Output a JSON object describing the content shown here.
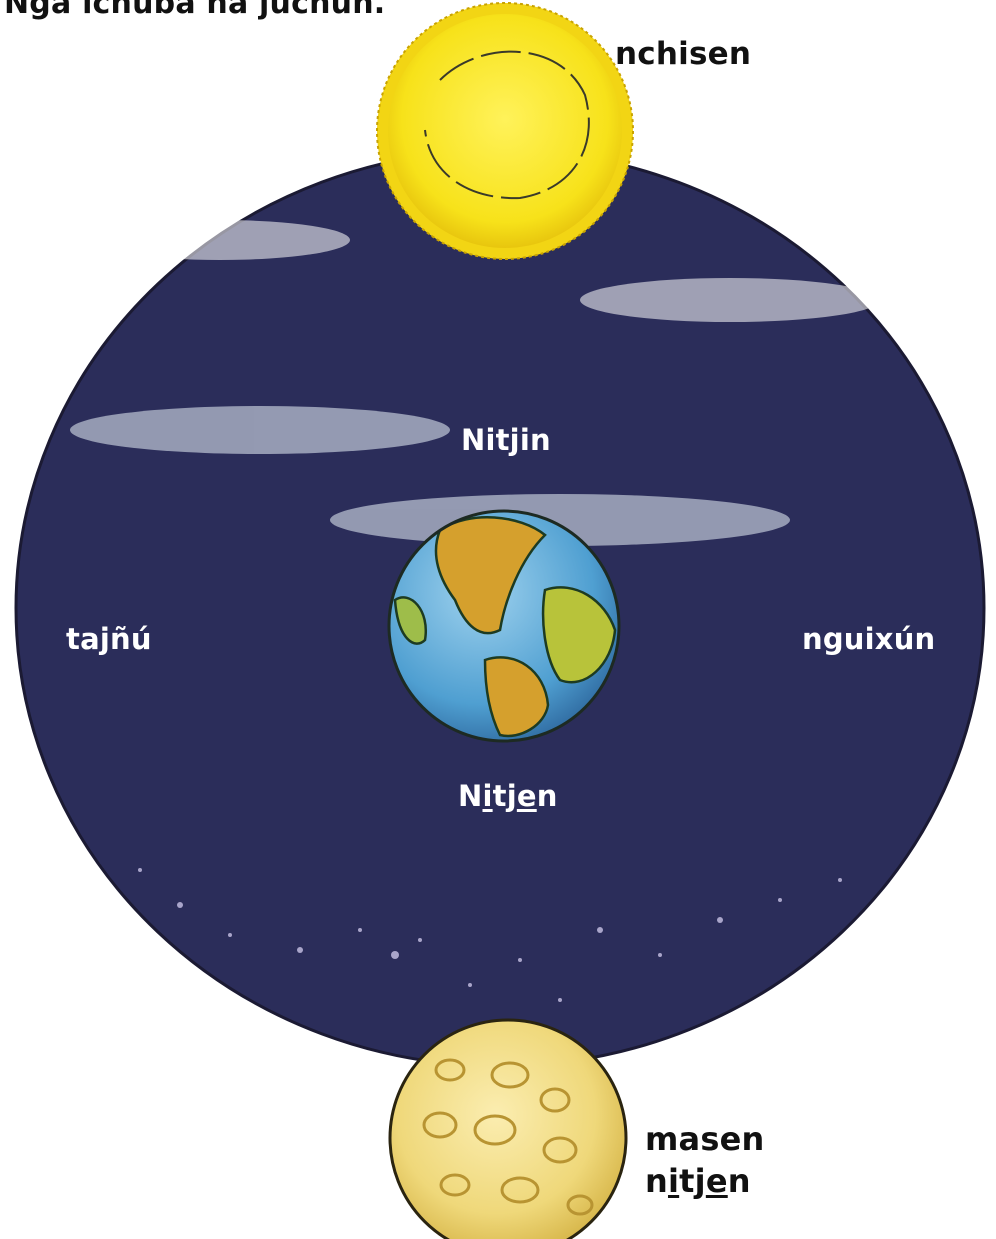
{
  "title": "Ngà ichubà na juchun.",
  "labels": {
    "sun": "nchisen",
    "day": "Nitjin",
    "west": "tajñú",
    "east": "nguixún",
    "night": {
      "p1": "N",
      "p2": "i",
      "p3": "tj",
      "p4": "e",
      "p5": "n"
    },
    "moon": {
      "line1": "masen",
      "line2": {
        "p1": "n",
        "p2": "i",
        "p3": "tj",
        "p4": "e",
        "p5": "n"
      }
    }
  },
  "colors": {
    "sky_day": "#d5e6f2",
    "sky_mid": "#8fb6d8",
    "sky_night": "#2b2f5e",
    "sun": "#f7e21a",
    "moon": "#efd87a",
    "earth_ocean": "#4f9fd1",
    "earth_land": "#d5a02d"
  }
}
